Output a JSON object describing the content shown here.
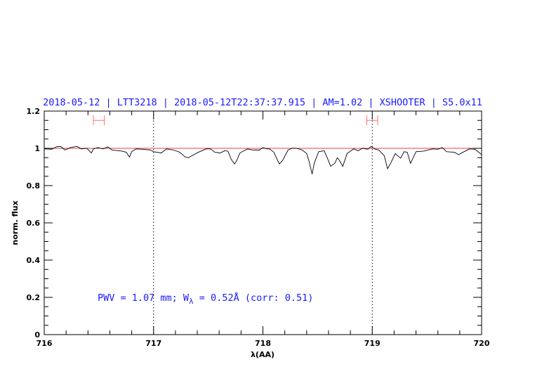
{
  "chart_data": {
    "type": "line",
    "title": "2018-05-12 | LTT3218 | 2018-05-12T22:37:37.915 | AM=1.02 | XSHOOTER | S5.0x11",
    "xlabel": "λ(AA)",
    "ylabel": "norm. flux",
    "xlim": [
      716,
      720
    ],
    "ylim": [
      0,
      1.2
    ],
    "x_ticks": [
      716,
      717,
      718,
      719,
      720
    ],
    "x_tick_labels": [
      "716",
      "717",
      "718",
      "719",
      "720"
    ],
    "x_minor_step": 0.2,
    "y_ticks": [
      0,
      0.2,
      0.4,
      0.6,
      0.8,
      1,
      1.2
    ],
    "y_tick_labels": [
      "0",
      "0.2",
      "0.4",
      "0.6",
      "0.8",
      "1",
      "1.2"
    ],
    "y_minor_step": 0.05,
    "grid": false,
    "reference_line": {
      "y": 1.0,
      "color": "#e04040"
    },
    "dotted_vlines": [
      717,
      719
    ],
    "range_markers": [
      {
        "x0": 716.45,
        "x1": 716.55,
        "y": 1.15,
        "color": "#ff7070"
      },
      {
        "x0": 718.95,
        "x1": 719.05,
        "y": 1.15,
        "color": "#ff7070"
      }
    ],
    "annotation": {
      "prefix": "PWV = 1.07 mm; W",
      "subscript": "λ",
      "suffix": " = 0.52Å (corr: 0.51)"
    },
    "colors": {
      "title": "#1a1aff",
      "spectrum": "#000000"
    },
    "series": [
      {
        "x": [
          716.0,
          716.07,
          716.11,
          716.15,
          716.19,
          716.24,
          716.3,
          716.34,
          716.39,
          716.43,
          716.45,
          716.49,
          716.54,
          716.58,
          716.62,
          716.71,
          716.75,
          716.78,
          716.8,
          716.84,
          716.9,
          716.97,
          717.0,
          717.03,
          717.07,
          717.12,
          717.18,
          717.24,
          717.29,
          717.32,
          717.35,
          717.41,
          717.48,
          717.52,
          717.56,
          717.61,
          717.65,
          717.68,
          717.71,
          717.74,
          717.76,
          717.79,
          717.82,
          717.86,
          717.91,
          717.97,
          718.0,
          718.04,
          718.06,
          718.1,
          718.15,
          718.18,
          718.23,
          718.27,
          718.31,
          718.36,
          718.4,
          718.42,
          718.45,
          718.47,
          718.51,
          718.56,
          718.59,
          718.62,
          718.66,
          718.68,
          718.7,
          718.73,
          718.77,
          718.83,
          718.87,
          718.91,
          718.96,
          718.99,
          719.02,
          719.06,
          719.11,
          719.14,
          719.17,
          719.21,
          719.26,
          719.29,
          719.32,
          719.35,
          719.4,
          719.47,
          719.51,
          719.55,
          719.6,
          719.64,
          719.68,
          719.75,
          719.79,
          719.83,
          719.89,
          719.94,
          720.0
        ],
        "y": [
          0.997,
          0.995,
          1.008,
          1.01,
          0.991,
          1.004,
          1.01,
          0.997,
          1.0,
          0.975,
          0.997,
          1.004,
          0.997,
          1.008,
          0.991,
          0.985,
          0.979,
          0.953,
          0.982,
          0.997,
          0.995,
          0.991,
          0.982,
          0.979,
          0.975,
          0.997,
          0.991,
          0.979,
          0.953,
          0.95,
          0.96,
          0.979,
          0.997,
          0.997,
          0.979,
          0.975,
          0.987,
          0.985,
          0.941,
          0.916,
          0.934,
          0.975,
          0.985,
          0.997,
          0.991,
          0.991,
          1.004,
          0.997,
          0.997,
          0.979,
          0.916,
          0.935,
          0.991,
          1.001,
          1.0,
          0.991,
          0.972,
          0.934,
          0.862,
          0.921,
          0.982,
          0.987,
          0.947,
          0.903,
          0.922,
          0.95,
          0.935,
          0.903,
          0.972,
          0.997,
          0.987,
          1.0,
          0.995,
          1.01,
          0.997,
          0.991,
          0.96,
          0.89,
          0.922,
          0.972,
          0.947,
          0.982,
          0.979,
          0.919,
          0.982,
          0.985,
          0.991,
          0.997,
          0.995,
          1.004,
          0.982,
          0.979,
          0.966,
          0.979,
          0.997,
          0.995,
          0.966
        ]
      }
    ]
  }
}
